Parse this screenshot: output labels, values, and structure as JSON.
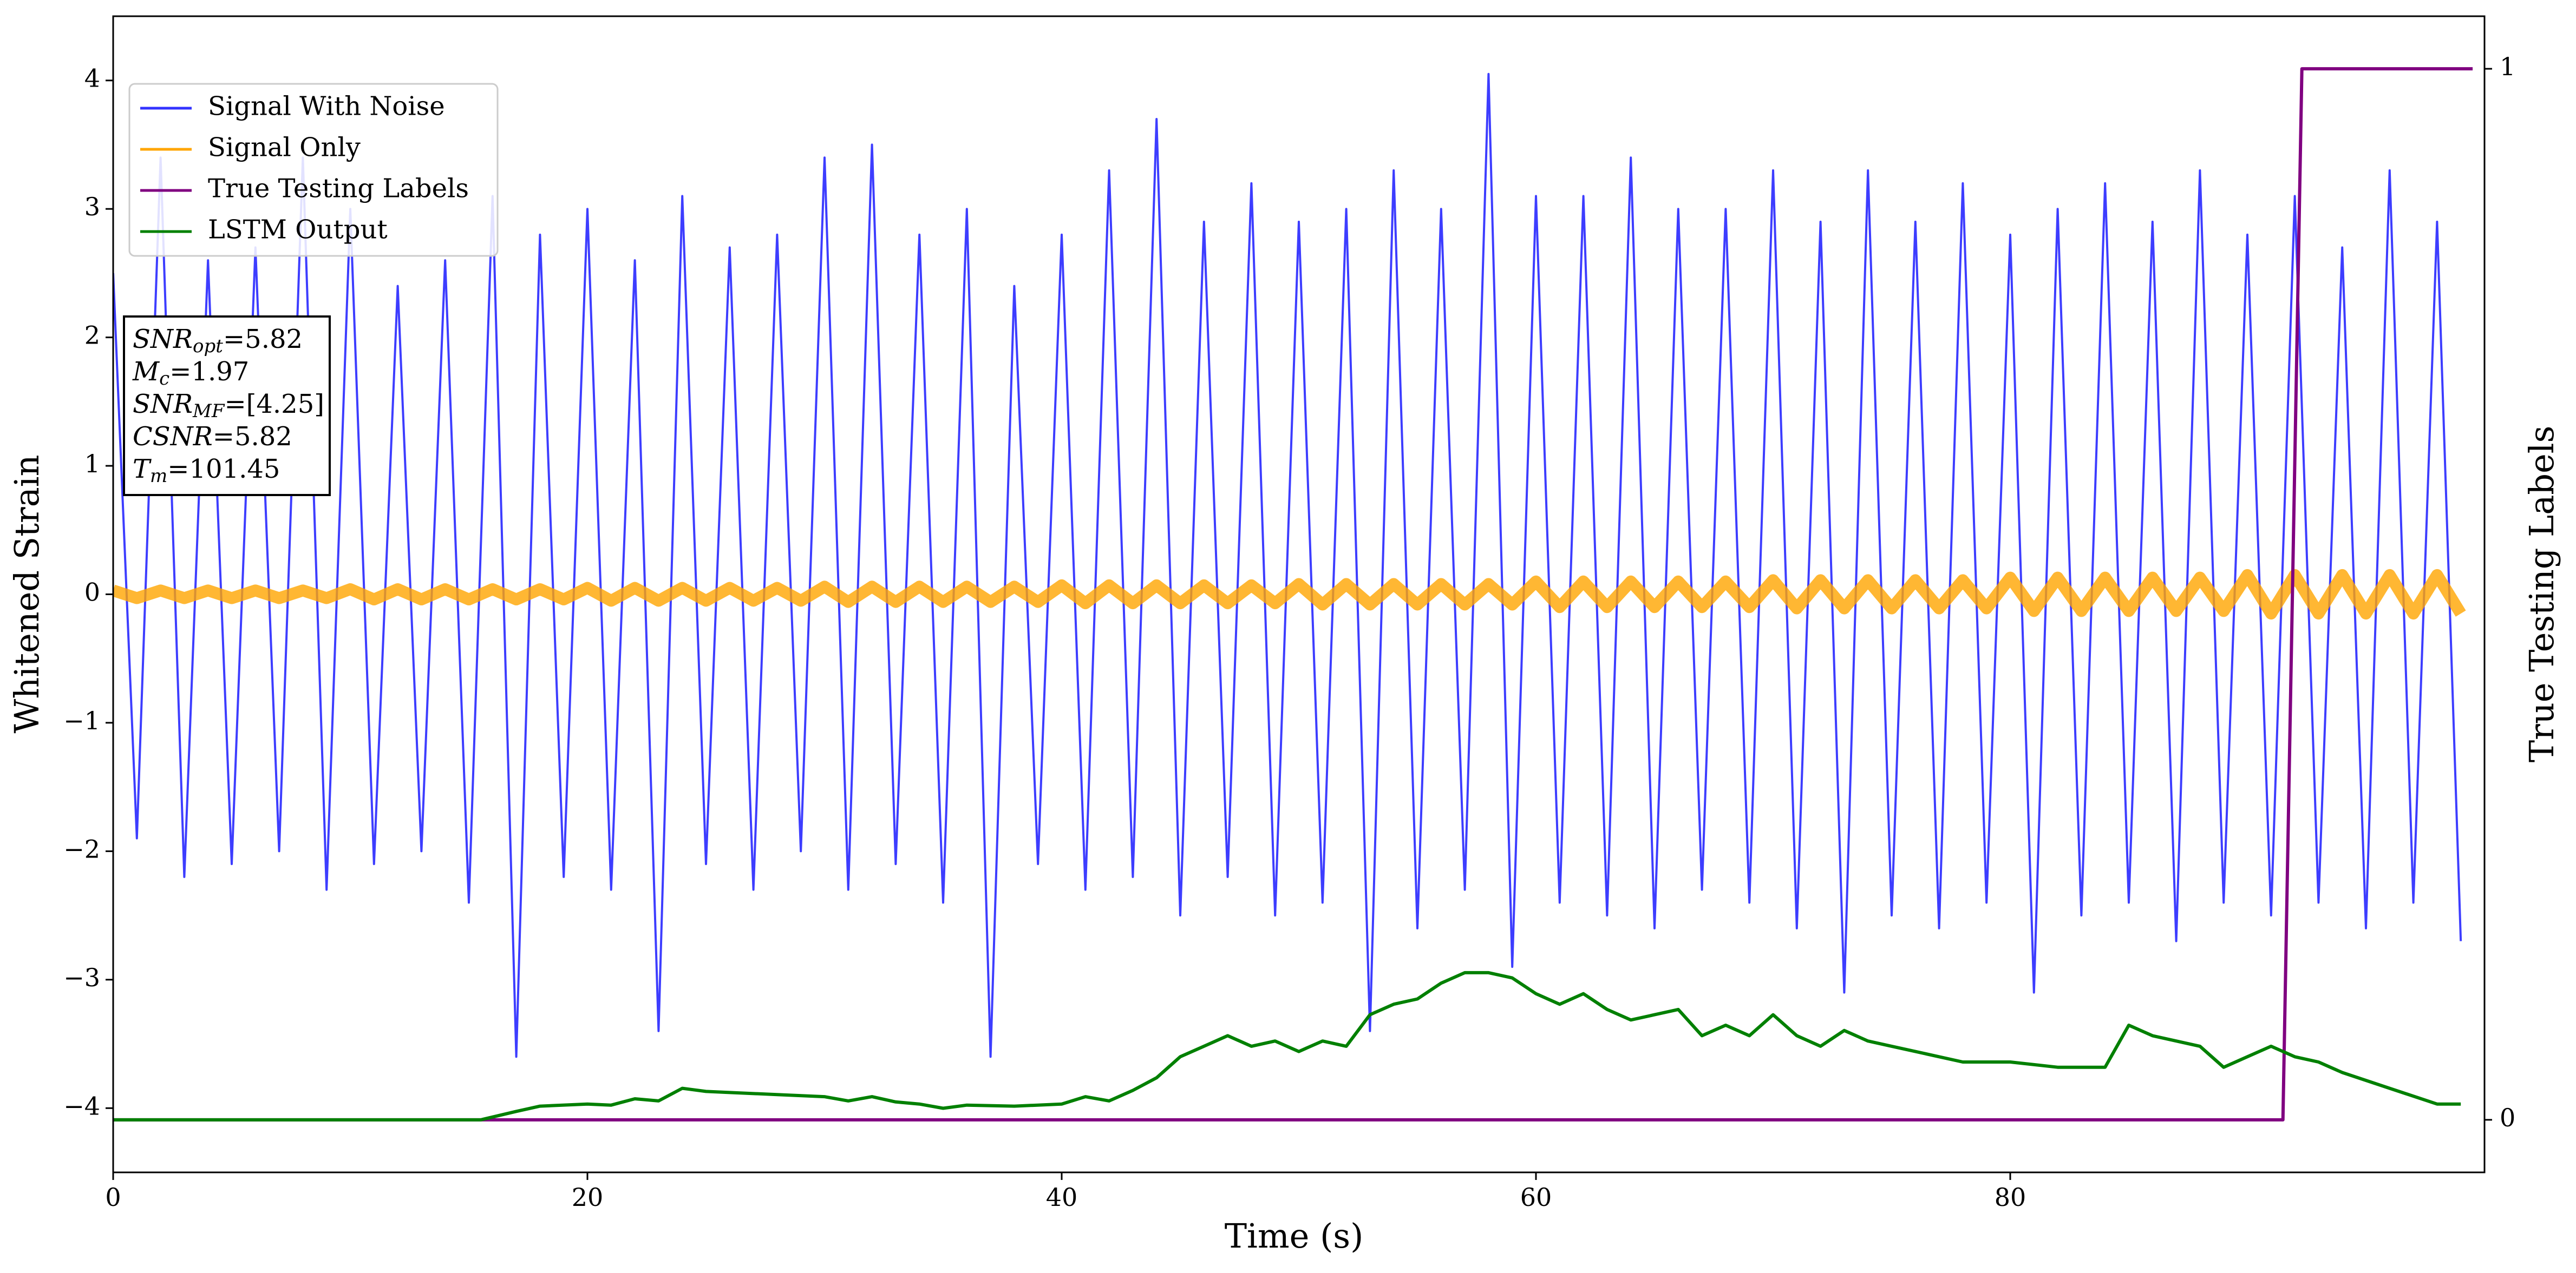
{
  "chart_data": {
    "type": "line",
    "xlabel": "Time (s)",
    "ylabel": "Whitened Strain",
    "y2label": "True Testing Labels",
    "xlim": [
      0,
      100
    ],
    "ylim": [
      -4.5,
      4.5
    ],
    "y2lim": [
      -0.05,
      1.05
    ],
    "xticks": [
      0,
      20,
      40,
      60,
      80
    ],
    "yticks": [
      {
        "value": -4,
        "label": "−4"
      },
      {
        "value": -3,
        "label": "−3"
      },
      {
        "value": -2,
        "label": "−2"
      },
      {
        "value": -1,
        "label": "−1"
      },
      0,
      1,
      2,
      3,
      4
    ],
    "y2ticks": [
      0,
      1
    ],
    "legend": "upper left",
    "x": [
      0,
      1,
      2,
      3,
      4,
      5,
      6,
      7,
      8,
      9,
      10,
      11,
      12,
      13,
      14,
      15,
      16,
      17,
      18,
      19,
      20,
      21,
      22,
      23,
      24,
      25,
      26,
      27,
      28,
      29,
      30,
      31,
      32,
      33,
      34,
      35,
      36,
      37,
      38,
      39,
      40,
      41,
      42,
      43,
      44,
      45,
      46,
      47,
      48,
      49,
      50,
      51,
      52,
      53,
      54,
      55,
      56,
      57,
      58,
      59,
      60,
      61,
      62,
      63,
      64,
      65,
      66,
      67,
      68,
      69,
      70,
      71,
      72,
      73,
      74,
      75,
      76,
      77,
      78,
      79,
      80,
      81,
      82,
      83,
      84,
      85,
      86,
      87,
      88,
      89,
      90,
      91,
      92,
      93,
      94,
      95,
      96,
      97,
      98,
      99
    ],
    "series": [
      {
        "name": "Signal With Noise",
        "color": "#3333ff",
        "values": [
          2.5,
          -1.9,
          3.4,
          -2.2,
          2.6,
          -2.1,
          2.7,
          -2.0,
          3.4,
          -2.3,
          3.0,
          -2.1,
          2.4,
          -2.0,
          2.6,
          -2.4,
          3.1,
          -3.6,
          2.8,
          -2.2,
          3.0,
          -2.3,
          2.6,
          -3.4,
          3.1,
          -2.1,
          2.7,
          -2.3,
          2.8,
          -2.0,
          3.4,
          -2.3,
          3.5,
          -2.1,
          2.8,
          -2.4,
          3.0,
          -3.6,
          2.4,
          -2.1,
          2.8,
          -2.3,
          3.3,
          -2.2,
          3.7,
          -2.5,
          2.9,
          -2.2,
          3.2,
          -2.5,
          2.9,
          -2.4,
          3.0,
          -3.4,
          3.3,
          -2.6,
          3.0,
          -2.3,
          4.05,
          -2.9,
          3.1,
          -2.4,
          3.1,
          -2.5,
          3.4,
          -2.6,
          3.0,
          -2.3,
          3.0,
          -2.4,
          3.3,
          -2.6,
          2.9,
          -3.1,
          3.3,
          -2.5,
          2.9,
          -2.6,
          3.2,
          -2.4,
          2.8,
          -3.1,
          3.0,
          -2.5,
          3.2,
          -2.4,
          2.9,
          -2.7,
          3.3,
          -2.4,
          2.8,
          -2.5,
          3.1,
          -2.4,
          2.7,
          -2.6,
          3.3,
          -2.4,
          2.9,
          -2.7
        ]
      },
      {
        "name": "Signal Only",
        "color": "#ffa500",
        "values": [
          0.03,
          -0.03,
          0.03,
          -0.03,
          0.03,
          -0.03,
          0.03,
          -0.03,
          0.03,
          -0.03,
          0.04,
          -0.04,
          0.04,
          -0.04,
          0.04,
          -0.04,
          0.04,
          -0.04,
          0.04,
          -0.04,
          0.05,
          -0.05,
          0.05,
          -0.05,
          0.05,
          -0.05,
          0.05,
          -0.05,
          0.05,
          -0.05,
          0.06,
          -0.06,
          0.06,
          -0.06,
          0.06,
          -0.06,
          0.06,
          -0.06,
          0.06,
          -0.06,
          0.07,
          -0.07,
          0.07,
          -0.07,
          0.07,
          -0.07,
          0.07,
          -0.07,
          0.07,
          -0.07,
          0.08,
          -0.08,
          0.08,
          -0.08,
          0.08,
          -0.08,
          0.08,
          -0.08,
          0.08,
          -0.08,
          0.1,
          -0.1,
          0.1,
          -0.1,
          0.1,
          -0.1,
          0.1,
          -0.1,
          0.1,
          -0.1,
          0.11,
          -0.11,
          0.11,
          -0.11,
          0.11,
          -0.11,
          0.11,
          -0.11,
          0.11,
          -0.11,
          0.13,
          -0.13,
          0.13,
          -0.13,
          0.13,
          -0.13,
          0.13,
          -0.13,
          0.13,
          -0.13,
          0.15,
          -0.15,
          0.15,
          -0.15,
          0.15,
          -0.15,
          0.15,
          -0.15,
          0.15,
          -0.15
        ]
      },
      {
        "name": "True Testing Labels",
        "color": "#800080",
        "axis": "y2",
        "x": [
          0,
          91.5,
          92.3,
          99.5
        ],
        "values": [
          0,
          0,
          1,
          1
        ]
      },
      {
        "name": "LSTM Output",
        "color": "#008000",
        "axis": "y2",
        "x": [
          0,
          15.5,
          17,
          18,
          20,
          21,
          22,
          23,
          24,
          25,
          26,
          28,
          30,
          31,
          32,
          33,
          34,
          35,
          36,
          38,
          40,
          41,
          42,
          43,
          44,
          45,
          46,
          47,
          48,
          49,
          50,
          51,
          52,
          53,
          54,
          55,
          56,
          57,
          58,
          59,
          60,
          61,
          62,
          63,
          64,
          65,
          66,
          67,
          68,
          69,
          70,
          71,
          72,
          73,
          74,
          75,
          76,
          77,
          78,
          80,
          82,
          84,
          85,
          86,
          88,
          89,
          90,
          91,
          92,
          93,
          94,
          96,
          98,
          99
        ],
        "values": [
          0,
          0,
          0.008,
          0.013,
          0.015,
          0.014,
          0.02,
          0.018,
          0.03,
          0.027,
          0.026,
          0.024,
          0.022,
          0.018,
          0.022,
          0.017,
          0.015,
          0.011,
          0.014,
          0.013,
          0.015,
          0.022,
          0.018,
          0.028,
          0.04,
          0.06,
          0.07,
          0.08,
          0.07,
          0.075,
          0.065,
          0.075,
          0.07,
          0.1,
          0.11,
          0.115,
          0.13,
          0.14,
          0.14,
          0.135,
          0.12,
          0.11,
          0.12,
          0.105,
          0.095,
          0.1,
          0.105,
          0.08,
          0.09,
          0.08,
          0.1,
          0.08,
          0.07,
          0.085,
          0.075,
          0.07,
          0.065,
          0.06,
          0.055,
          0.055,
          0.05,
          0.05,
          0.09,
          0.08,
          0.07,
          0.05,
          0.06,
          0.07,
          0.06,
          0.055,
          0.045,
          0.03,
          0.015,
          0.015
        ]
      }
    ],
    "annotation": [
      {
        "text": "SNR",
        "sub": "opt",
        "rest": "=5.82"
      },
      {
        "text": "M",
        "sub": "c",
        "rest": "=1.97"
      },
      {
        "text": "SNR",
        "sub": "MF",
        "rest": "=[4.25]"
      },
      {
        "text": "CSNR",
        "rest": "=5.82"
      },
      {
        "text": "T",
        "sub": "m",
        "rest": "=101.45"
      }
    ]
  }
}
